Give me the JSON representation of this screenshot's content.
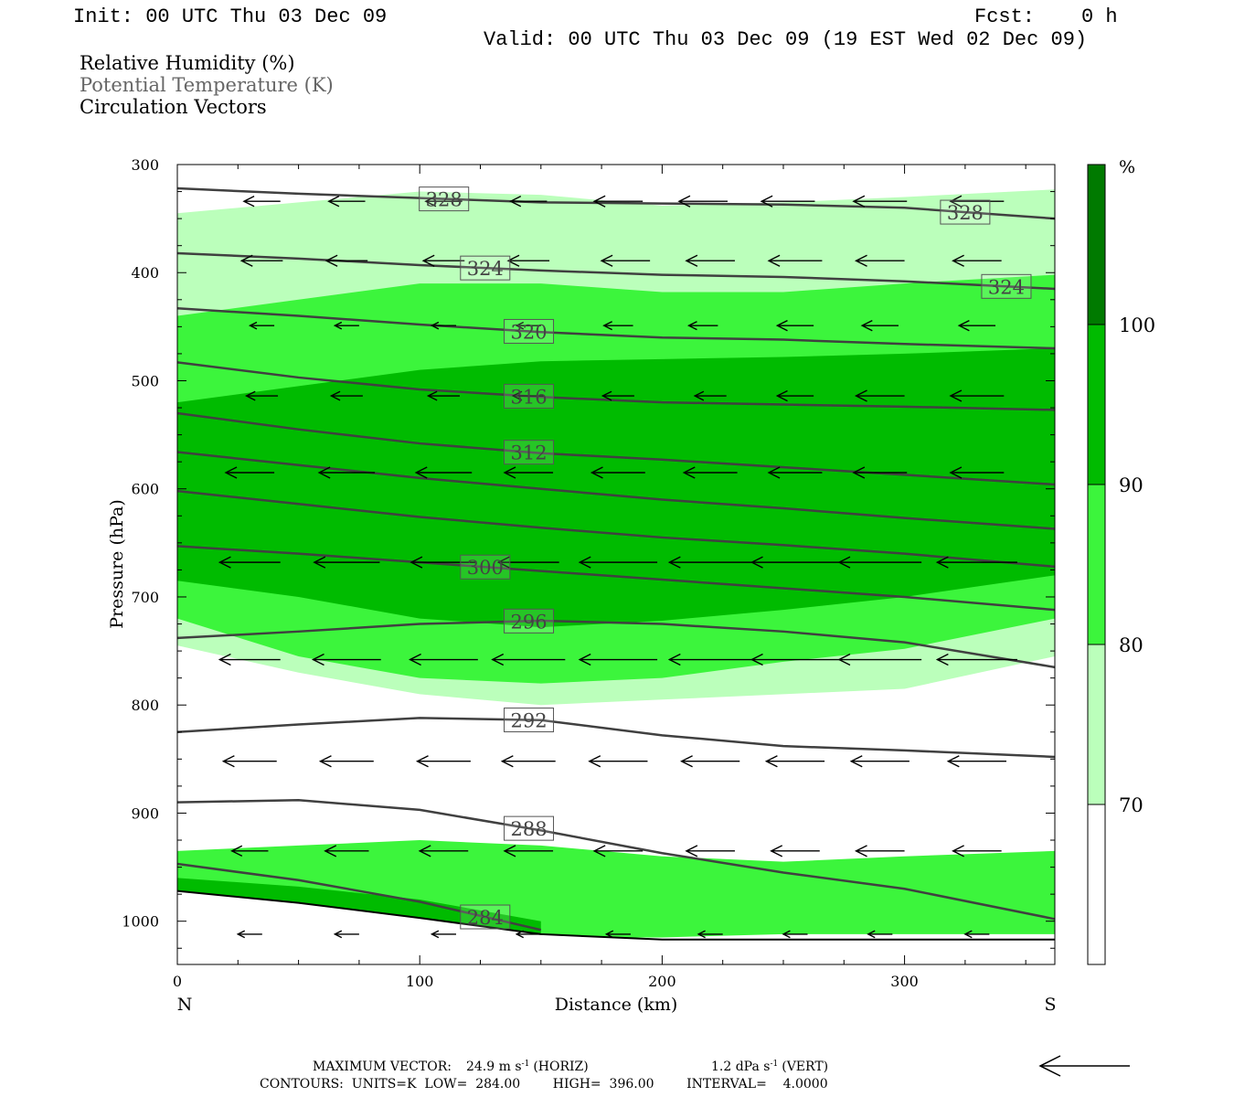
{
  "header": {
    "init": "Init: 00 UTC Thu 03 Dec 09",
    "fcst_label": "Fcst:",
    "fcst_value": "0 h",
    "valid": "Valid: 00 UTC Thu 03 Dec 09 (19 EST Wed 02 Dec 09)"
  },
  "legend": {
    "rh": "Relative Humidity (%)",
    "theta": "Potential Temperature (K)",
    "vectors": "Circulation Vectors"
  },
  "colors": {
    "rh_70_80": "#bbffbb",
    "rh_80_90": "#3cf53c",
    "rh_90_100": "#00bb00",
    "rh_100_plus": "#007a00",
    "contour": "#404040"
  },
  "chart_data": {
    "type": "cross-section",
    "title": "",
    "xlabel": "Distance (km)",
    "ylabel": "Pressure (hPa)",
    "xlim": [
      0,
      362
    ],
    "ylim": [
      1040,
      300
    ],
    "x_ticks": [
      "0",
      "100",
      "200",
      "300"
    ],
    "x_tick_values": [
      0,
      100,
      200,
      300
    ],
    "y_ticks": [
      "300",
      "400",
      "500",
      "600",
      "700",
      "800",
      "900",
      "1000"
    ],
    "y_tick_values": [
      300,
      400,
      500,
      600,
      700,
      800,
      900,
      1000
    ],
    "x_start_label": "N",
    "x_end_label": "S",
    "colorbar": {
      "unit": "%",
      "levels": [
        "70",
        "80",
        "90",
        "100"
      ]
    },
    "rh_fills": [
      {
        "band": "70-80",
        "x": [
          0,
          50,
          100,
          150,
          200,
          250,
          300,
          362,
          362,
          300,
          250,
          200,
          150,
          100,
          50,
          0
        ],
        "top": [
          345,
          335,
          325,
          328,
          338,
          335,
          330,
          323
        ],
        "bottom": [
          745,
          770,
          790,
          800,
          795,
          790,
          785,
          755
        ]
      },
      {
        "band": "80-90",
        "x": [
          0,
          50,
          100,
          150,
          200,
          250,
          300,
          362
        ],
        "top": [
          440,
          425,
          410,
          410,
          418,
          418,
          410,
          402
        ],
        "bottom": [
          720,
          755,
          775,
          780,
          775,
          760,
          748,
          720
        ]
      },
      {
        "band": "90-100",
        "x": [
          0,
          50,
          100,
          150,
          200,
          250,
          300,
          362
        ],
        "top": [
          520,
          505,
          490,
          482,
          480,
          478,
          475,
          470
        ],
        "bottom": [
          685,
          700,
          720,
          728,
          722,
          712,
          700,
          680
        ]
      },
      {
        "band": "80-90",
        "x": [
          0,
          50,
          100,
          150,
          200,
          250,
          300,
          362
        ],
        "top": [
          935,
          930,
          925,
          930,
          940,
          945,
          940,
          935
        ],
        "bottom": [
          995,
          1000,
          1010,
          1015,
          1015,
          1012,
          1012,
          1012
        ]
      },
      {
        "band": "90-100",
        "x": [
          0,
          50,
          100,
          150
        ],
        "top": [
          960,
          968,
          980,
          1000
        ],
        "bottom": [
          985,
          995,
          1005,
          1012
        ]
      }
    ],
    "theta_contours": [
      {
        "label": "328",
        "x": [
          0,
          50,
          100,
          150,
          200,
          250,
          300,
          362
        ],
        "p": [
          322,
          327,
          331,
          335,
          336,
          337,
          340,
          350
        ]
      },
      {
        "label": "324",
        "x": [
          0,
          50,
          100,
          150,
          200,
          250,
          300,
          362
        ],
        "p": [
          382,
          387,
          393,
          398,
          402,
          404,
          408,
          415
        ]
      },
      {
        "label": "320",
        "x": [
          0,
          50,
          100,
          150,
          200,
          250,
          300,
          362
        ],
        "p": [
          433,
          440,
          448,
          455,
          460,
          462,
          466,
          470
        ]
      },
      {
        "label": "316",
        "x": [
          0,
          50,
          100,
          150,
          200,
          250,
          300,
          362
        ],
        "p": [
          483,
          497,
          508,
          515,
          520,
          522,
          524,
          527
        ]
      },
      {
        "label": "312",
        "x": [
          0,
          50,
          100,
          150,
          200,
          250,
          300,
          362
        ],
        "p": [
          530,
          545,
          558,
          567,
          573,
          580,
          587,
          596
        ]
      },
      {
        "label": "",
        "x": [
          0,
          50,
          100,
          150,
          200,
          250,
          300,
          362
        ],
        "p": [
          566,
          578,
          590,
          600,
          610,
          618,
          627,
          637
        ]
      },
      {
        "label": "",
        "x": [
          0,
          50,
          100,
          150,
          200,
          250,
          300,
          362
        ],
        "p": [
          602,
          614,
          626,
          636,
          645,
          652,
          660,
          672
        ]
      },
      {
        "label": "300",
        "x": [
          0,
          50,
          100,
          150,
          200,
          250,
          300,
          362
        ],
        "p": [
          653,
          660,
          668,
          676,
          684,
          692,
          700,
          712
        ]
      },
      {
        "label": "296",
        "x": [
          0,
          50,
          100,
          150,
          200,
          250,
          300,
          362
        ],
        "p": [
          738,
          732,
          725,
          722,
          725,
          732,
          742,
          765
        ]
      },
      {
        "label": "292",
        "x": [
          0,
          50,
          100,
          150,
          200,
          250,
          300,
          362
        ],
        "p": [
          825,
          818,
          812,
          814,
          828,
          838,
          842,
          848
        ]
      },
      {
        "label": "288",
        "x": [
          0,
          50,
          100,
          150,
          200,
          250,
          300,
          362
        ],
        "p": [
          890,
          888,
          897,
          916,
          937,
          955,
          970,
          998
        ]
      },
      {
        "label": "284",
        "x": [
          0,
          50,
          100,
          150
        ],
        "p": [
          947,
          962,
          982,
          1008
        ]
      }
    ],
    "terrain": {
      "x": [
        0,
        50,
        100,
        150,
        200,
        250,
        300,
        362
      ],
      "p": [
        972,
        983,
        997,
        1012,
        1017,
        1017,
        1017,
        1017
      ]
    },
    "vectors_rows": [
      {
        "p": 334,
        "x": [
          35,
          70,
          110,
          145,
          182,
          217,
          252,
          290,
          330
        ],
        "len": [
          15,
          15,
          15,
          15,
          20,
          20,
          22,
          22,
          22
        ]
      },
      {
        "p": 389,
        "x": [
          35,
          70,
          110,
          145,
          185,
          220,
          255,
          290,
          330
        ],
        "len": [
          17,
          17,
          17,
          17,
          20,
          20,
          22,
          20,
          20
        ]
      },
      {
        "p": 449,
        "x": [
          35,
          70,
          110,
          145,
          182,
          217,
          255,
          290,
          330
        ],
        "len": [
          10,
          10,
          10,
          10,
          12,
          12,
          15,
          15,
          15
        ]
      },
      {
        "p": 514,
        "x": [
          35,
          70,
          110,
          145,
          182,
          220,
          255,
          290,
          330
        ],
        "len": [
          13,
          13,
          13,
          13,
          13,
          13,
          15,
          20,
          22
        ]
      },
      {
        "p": 585,
        "x": [
          30,
          70,
          110,
          145,
          182,
          220,
          255,
          290,
          330
        ],
        "len": [
          20,
          23,
          23,
          20,
          22,
          22,
          22,
          22,
          22
        ]
      },
      {
        "p": 668,
        "x": [
          30,
          70,
          110,
          145,
          182,
          220,
          255,
          290,
          330
        ],
        "len": [
          25,
          27,
          27,
          25,
          32,
          34,
          36,
          34,
          33
        ]
      },
      {
        "p": 758,
        "x": [
          30,
          70,
          110,
          145,
          182,
          220,
          255,
          290,
          330
        ],
        "len": [
          25,
          28,
          28,
          30,
          32,
          34,
          36,
          34,
          33
        ]
      },
      {
        "p": 852,
        "x": [
          30,
          70,
          110,
          145,
          182,
          220,
          255,
          290,
          330
        ],
        "len": [
          22,
          22,
          22,
          22,
          24,
          24,
          24,
          24,
          24
        ]
      },
      {
        "p": 935,
        "x": [
          30,
          70,
          110,
          145,
          182,
          220,
          255,
          290,
          330
        ],
        "len": [
          15,
          18,
          20,
          20,
          20,
          20,
          20,
          20,
          20
        ]
      },
      {
        "p": 1012,
        "x": [
          30,
          70,
          110,
          145,
          182,
          220,
          255,
          290,
          330
        ],
        "len": [
          10,
          10,
          10,
          10,
          10,
          10,
          10,
          10,
          10
        ]
      }
    ]
  },
  "footer": {
    "max_vector_label": "MAXIMUM VECTOR:",
    "max_horiz": "24.9 m s",
    "horiz_tag": "(HORIZ)",
    "max_vert": "1.2 dPa s",
    "vert_tag": "(VERT)",
    "exp": "-1",
    "contours_line": "CONTOURS:  UNITS=K  LOW=  284.00        HIGH=  396.00        INTERVAL=    4.0000"
  }
}
